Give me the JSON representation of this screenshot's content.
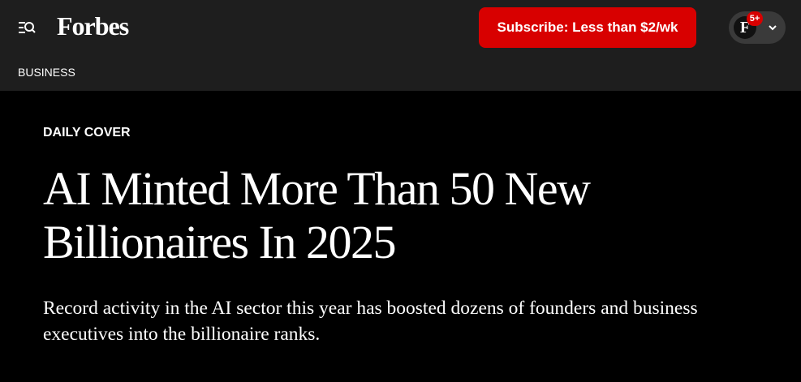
{
  "header": {
    "logo": "Forbes",
    "subscribe": "Subscribe: Less than $2/wk",
    "avatar": "F",
    "badge": "5+"
  },
  "nav": {
    "section": "BUSINESS"
  },
  "article": {
    "label": "DAILY COVER",
    "headline": "AI Minted More Than 50 New Billionaires In 2025",
    "dek": "Record activity in the AI sector this year has boosted dozens of founders and business executives into the billionaire ranks."
  }
}
